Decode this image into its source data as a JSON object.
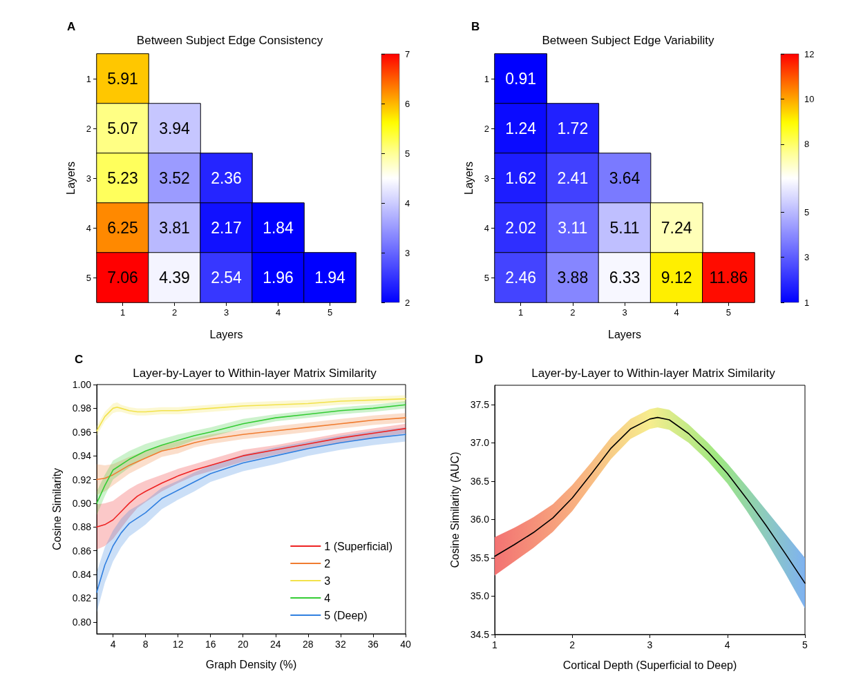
{
  "chart_data": [
    {
      "type": "heatmap",
      "title": "Between Subject Edge Consistency",
      "xlabel": "Layers",
      "ylabel": "Layers",
      "categories": [
        "1",
        "2",
        "3",
        "4",
        "5"
      ],
      "y_categories": [
        "1",
        "2",
        "3",
        "4",
        "5"
      ],
      "cells": [
        [
          5.91,
          null,
          null,
          null,
          null
        ],
        [
          5.07,
          3.94,
          null,
          null,
          null
        ],
        [
          5.23,
          3.52,
          2.36,
          null,
          null
        ],
        [
          6.25,
          3.81,
          2.17,
          1.84,
          null
        ],
        [
          7.06,
          4.39,
          2.54,
          1.96,
          1.94
        ]
      ],
      "clim": [
        2,
        7
      ],
      "cticks": [
        2,
        3,
        4,
        5,
        6,
        7
      ],
      "data_labels": true,
      "annotations": [
        "A"
      ]
    },
    {
      "type": "heatmap",
      "title": "Between Subject Edge Variability",
      "xlabel": "Layers",
      "ylabel": "Layers",
      "categories": [
        "1",
        "2",
        "3",
        "4",
        "5"
      ],
      "y_categories": [
        "1",
        "2",
        "3",
        "4",
        "5"
      ],
      "cells": [
        [
          0.91,
          null,
          null,
          null,
          null
        ],
        [
          1.24,
          1.72,
          null,
          null,
          null
        ],
        [
          1.62,
          2.41,
          3.64,
          null,
          null
        ],
        [
          2.02,
          3.11,
          5.11,
          7.24,
          null
        ],
        [
          2.46,
          3.88,
          6.33,
          9.12,
          11.86
        ]
      ],
      "clim": [
        1,
        12
      ],
      "cticks": [
        1,
        3,
        5,
        8,
        10,
        12
      ],
      "data_labels": true,
      "annotations": [
        "B"
      ]
    },
    {
      "type": "line",
      "title": "Layer-by-Layer to Within-layer Matrix Similarity",
      "xlabel": "Graph Density (%)",
      "ylabel": "Cosine Similarity",
      "xlim": [
        2,
        40
      ],
      "xticks": [
        4,
        8,
        12,
        16,
        20,
        24,
        28,
        32,
        36,
        40
      ],
      "ylim": [
        0.79,
        1.0
      ],
      "yticks": [
        {
          "value": 0.8,
          "label": "0.80"
        },
        {
          "value": 0.82,
          "label": "0.82"
        },
        {
          "value": 0.84,
          "label": "0.84"
        },
        {
          "value": 0.86,
          "label": "0.86"
        },
        {
          "value": 0.88,
          "label": "0.88"
        },
        {
          "value": 0.9,
          "label": "0.90"
        },
        {
          "value": 0.92,
          "label": "0.92"
        },
        {
          "value": 0.94,
          "label": "0.94"
        },
        {
          "value": 0.96,
          "label": "0.96"
        },
        {
          "value": 0.98,
          "label": "0.98"
        },
        {
          "value": 1.0,
          "label": "1.00"
        }
      ],
      "legend": "bottom right",
      "marker": "none",
      "annotations": [
        "C"
      ],
      "series": [
        {
          "name": "1 (Superficial)",
          "color": "#ee2222",
          "x": [
            2,
            3,
            4,
            5,
            6,
            7,
            8,
            10,
            12,
            14,
            16,
            20,
            24,
            28,
            32,
            36,
            40
          ],
          "values": [
            0.88,
            0.882,
            0.886,
            0.893,
            0.9,
            0.906,
            0.91,
            0.917,
            0.923,
            0.928,
            0.932,
            0.94,
            0.945,
            0.95,
            0.955,
            0.959,
            0.963
          ],
          "lower": [
            0.861,
            0.864,
            0.87,
            0.879,
            0.888,
            0.896,
            0.901,
            0.91,
            0.917,
            0.923,
            0.927,
            0.935,
            0.941,
            0.946,
            0.951,
            0.955,
            0.959
          ],
          "upper": [
            0.899,
            0.9,
            0.902,
            0.907,
            0.912,
            0.916,
            0.919,
            0.924,
            0.929,
            0.933,
            0.937,
            0.945,
            0.949,
            0.954,
            0.959,
            0.963,
            0.967
          ]
        },
        {
          "name": "2",
          "color": "#f07c30",
          "x": [
            2,
            3,
            4,
            6,
            8,
            10,
            12,
            14,
            16,
            20,
            24,
            28,
            32,
            36,
            40
          ],
          "values": [
            0.92,
            0.921,
            0.924,
            0.932,
            0.938,
            0.944,
            0.947,
            0.951,
            0.954,
            0.958,
            0.961,
            0.964,
            0.967,
            0.97,
            0.972
          ],
          "lower": [
            0.907,
            0.91,
            0.915,
            0.925,
            0.932,
            0.939,
            0.942,
            0.947,
            0.95,
            0.954,
            0.957,
            0.96,
            0.963,
            0.966,
            0.968
          ],
          "upper": [
            0.933,
            0.932,
            0.933,
            0.939,
            0.944,
            0.949,
            0.952,
            0.955,
            0.958,
            0.962,
            0.965,
            0.968,
            0.971,
            0.974,
            0.976
          ]
        },
        {
          "name": "3",
          "color": "#f2e24a",
          "x": [
            2,
            3,
            4,
            4.5,
            5,
            6,
            7,
            8,
            10,
            12,
            16,
            20,
            24,
            28,
            32,
            36,
            40
          ],
          "values": [
            0.961,
            0.973,
            0.98,
            0.981,
            0.98,
            0.978,
            0.977,
            0.977,
            0.978,
            0.978,
            0.98,
            0.982,
            0.983,
            0.984,
            0.986,
            0.987,
            0.988
          ],
          "lower": [
            0.957,
            0.969,
            0.976,
            0.977,
            0.977,
            0.975,
            0.974,
            0.974,
            0.975,
            0.975,
            0.977,
            0.979,
            0.98,
            0.981,
            0.983,
            0.984,
            0.985
          ],
          "upper": [
            0.965,
            0.977,
            0.984,
            0.985,
            0.983,
            0.981,
            0.98,
            0.98,
            0.981,
            0.981,
            0.983,
            0.985,
            0.986,
            0.987,
            0.989,
            0.99,
            0.991
          ]
        },
        {
          "name": "4",
          "color": "#33cc33",
          "x": [
            2,
            3,
            4,
            6,
            8,
            10,
            12,
            14,
            16,
            20,
            24,
            28,
            32,
            36,
            40
          ],
          "values": [
            0.9,
            0.915,
            0.928,
            0.937,
            0.944,
            0.949,
            0.953,
            0.957,
            0.96,
            0.967,
            0.972,
            0.975,
            0.978,
            0.98,
            0.983
          ],
          "lower": [
            0.89,
            0.906,
            0.92,
            0.93,
            0.938,
            0.944,
            0.948,
            0.953,
            0.956,
            0.963,
            0.969,
            0.972,
            0.975,
            0.977,
            0.98
          ],
          "upper": [
            0.91,
            0.924,
            0.936,
            0.944,
            0.95,
            0.954,
            0.958,
            0.961,
            0.964,
            0.971,
            0.975,
            0.978,
            0.981,
            0.983,
            0.986
          ]
        },
        {
          "name": "5 (Deep)",
          "color": "#2f7fe0",
          "x": [
            2,
            3,
            4,
            5,
            6,
            8,
            10,
            12,
            14,
            16,
            20,
            24,
            28,
            32,
            36,
            40
          ],
          "values": [
            0.825,
            0.848,
            0.864,
            0.875,
            0.883,
            0.892,
            0.904,
            0.911,
            0.918,
            0.925,
            0.934,
            0.94,
            0.946,
            0.951,
            0.955,
            0.958
          ],
          "lower": [
            0.808,
            0.833,
            0.851,
            0.863,
            0.872,
            0.882,
            0.895,
            0.903,
            0.91,
            0.918,
            0.927,
            0.933,
            0.94,
            0.945,
            0.949,
            0.952
          ],
          "upper": [
            0.842,
            0.863,
            0.877,
            0.887,
            0.894,
            0.902,
            0.913,
            0.919,
            0.926,
            0.932,
            0.941,
            0.947,
            0.952,
            0.957,
            0.961,
            0.964
          ]
        }
      ]
    },
    {
      "type": "line",
      "title": "Layer-by-Layer to Within-layer Matrix Similarity",
      "xlabel": "Cortical Depth (Superficial to Deep)",
      "ylabel": "Cosine Similarity (AUC)",
      "xlim": [
        1,
        5
      ],
      "xticks": [
        1,
        2,
        3,
        4,
        5
      ],
      "ylim": [
        34.5,
        37.75
      ],
      "yticks": [
        34.5,
        {
          "value": 35,
          "label": "35.0"
        },
        35.5,
        {
          "value": 36,
          "label": "36.0"
        },
        36.5,
        {
          "value": 37,
          "label": "37.0"
        },
        37.5
      ],
      "marker": "none",
      "annotations": [
        "D"
      ],
      "series": [
        {
          "color": "#000000",
          "x": [
            1,
            1.25,
            1.5,
            1.75,
            2,
            2.25,
            2.5,
            2.75,
            3,
            3.1,
            3.25,
            3.5,
            3.75,
            4,
            4.25,
            4.5,
            4.75,
            5
          ],
          "values": [
            35.52,
            35.67,
            35.83,
            36.02,
            36.28,
            36.6,
            36.93,
            37.18,
            37.31,
            37.33,
            37.3,
            37.12,
            36.88,
            36.6,
            36.27,
            35.92,
            35.55,
            35.17
          ],
          "lower": [
            35.27,
            35.45,
            35.63,
            35.84,
            36.11,
            36.45,
            36.79,
            37.05,
            37.18,
            37.2,
            37.17,
            37,
            36.76,
            36.47,
            36.11,
            35.72,
            35.29,
            34.84
          ],
          "upper": [
            35.77,
            35.89,
            36.03,
            36.2,
            36.45,
            36.75,
            37.07,
            37.31,
            37.44,
            37.46,
            37.43,
            37.24,
            37,
            36.73,
            36.43,
            36.12,
            35.81,
            35.5
          ]
        }
      ]
    }
  ]
}
